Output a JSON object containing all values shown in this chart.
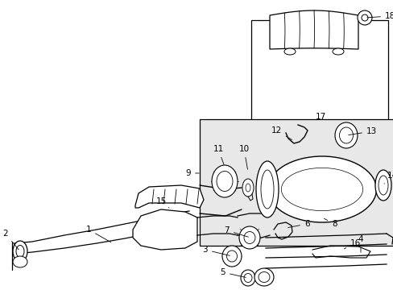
{
  "bg_color": "#ffffff",
  "box_fill": "#e0e0e0",
  "line_color": "#000000",
  "fig_w": 4.89,
  "fig_h": 3.6,
  "dpi": 100
}
